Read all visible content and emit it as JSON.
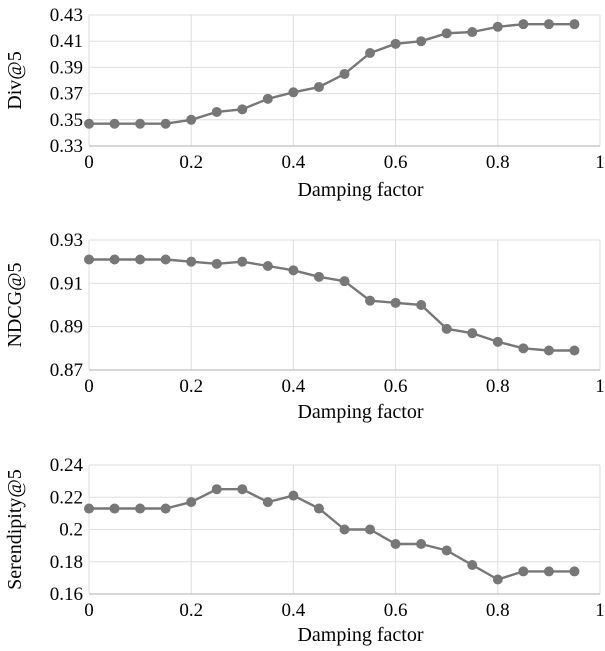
{
  "colors": {
    "series": "#777777",
    "grid": "#dddddd",
    "axis": "#bfbfbf"
  },
  "chart_data": [
    {
      "type": "line",
      "xlabel": "Damping factor",
      "ylabel": "Div@5",
      "xlim": [
        0,
        1
      ],
      "ylim": [
        0.33,
        0.43
      ],
      "x_ticks": [
        "0",
        "0.2",
        "0.4",
        "0.6",
        "0.8",
        "1"
      ],
      "y_ticks": [
        "0.33",
        "0.35",
        "0.37",
        "0.39",
        "0.41",
        "0.43"
      ],
      "grid": true,
      "x": [
        0,
        0.05,
        0.1,
        0.15,
        0.2,
        0.25,
        0.3,
        0.35,
        0.4,
        0.45,
        0.5,
        0.55,
        0.6,
        0.65,
        0.7,
        0.75,
        0.8,
        0.85,
        0.9,
        0.95
      ],
      "values": [
        0.347,
        0.347,
        0.347,
        0.347,
        0.35,
        0.356,
        0.358,
        0.366,
        0.371,
        0.375,
        0.385,
        0.401,
        0.408,
        0.41,
        0.416,
        0.417,
        0.421,
        0.423,
        0.423,
        0.423
      ]
    },
    {
      "type": "line",
      "xlabel": "Damping factor",
      "ylabel": "NDCG@5",
      "xlim": [
        0,
        1
      ],
      "ylim": [
        0.87,
        0.93
      ],
      "x_ticks": [
        "0",
        "0.2",
        "0.4",
        "0.6",
        "0.8",
        "1"
      ],
      "y_ticks": [
        "0.87",
        "0.89",
        "0.91",
        "0.93"
      ],
      "grid": true,
      "x": [
        0,
        0.05,
        0.1,
        0.15,
        0.2,
        0.25,
        0.3,
        0.35,
        0.4,
        0.45,
        0.5,
        0.55,
        0.6,
        0.65,
        0.7,
        0.75,
        0.8,
        0.85,
        0.9,
        0.95
      ],
      "values": [
        0.921,
        0.921,
        0.921,
        0.921,
        0.92,
        0.919,
        0.92,
        0.918,
        0.916,
        0.913,
        0.911,
        0.902,
        0.901,
        0.9,
        0.889,
        0.887,
        0.883,
        0.88,
        0.879,
        0.879
      ]
    },
    {
      "type": "line",
      "xlabel": "Damping factor",
      "ylabel": "Serendipity@5",
      "xlim": [
        0,
        1
      ],
      "ylim": [
        0.16,
        0.24
      ],
      "x_ticks": [
        "0",
        "0.2",
        "0.4",
        "0.6",
        "0.8",
        "1"
      ],
      "y_ticks": [
        "0.16",
        "0.18",
        "0.2",
        "0.22",
        "0.24"
      ],
      "grid": true,
      "x": [
        0,
        0.05,
        0.1,
        0.15,
        0.2,
        0.25,
        0.3,
        0.35,
        0.4,
        0.45,
        0.5,
        0.55,
        0.6,
        0.65,
        0.7,
        0.75,
        0.8,
        0.85,
        0.9,
        0.95
      ],
      "values": [
        0.213,
        0.213,
        0.213,
        0.213,
        0.217,
        0.225,
        0.225,
        0.217,
        0.221,
        0.213,
        0.2,
        0.2,
        0.191,
        0.191,
        0.187,
        0.178,
        0.169,
        0.174,
        0.174,
        0.174
      ]
    }
  ]
}
